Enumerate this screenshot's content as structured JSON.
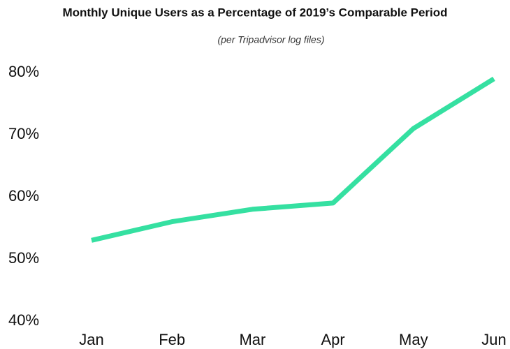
{
  "chart_data": {
    "type": "line",
    "title": "Monthly Unique Users as a Percentage of 2019’s Comparable Period",
    "subtitle": "(per Tripadvisor log files)",
    "categories": [
      "Jan",
      "Feb",
      "Mar",
      "Apr",
      "May",
      "Jun"
    ],
    "series": [
      {
        "color": "#35e0a1",
        "values": [
          53,
          56,
          58,
          59,
          71,
          79
        ]
      }
    ],
    "ylim": [
      40,
      80
    ],
    "yticks": [
      {
        "value": 40,
        "label": "40%"
      },
      {
        "value": 50,
        "label": "50%"
      },
      {
        "value": 60,
        "label": "60%"
      },
      {
        "value": 70,
        "label": "70%"
      },
      {
        "value": 80,
        "label": "80%"
      }
    ],
    "grid": false
  }
}
